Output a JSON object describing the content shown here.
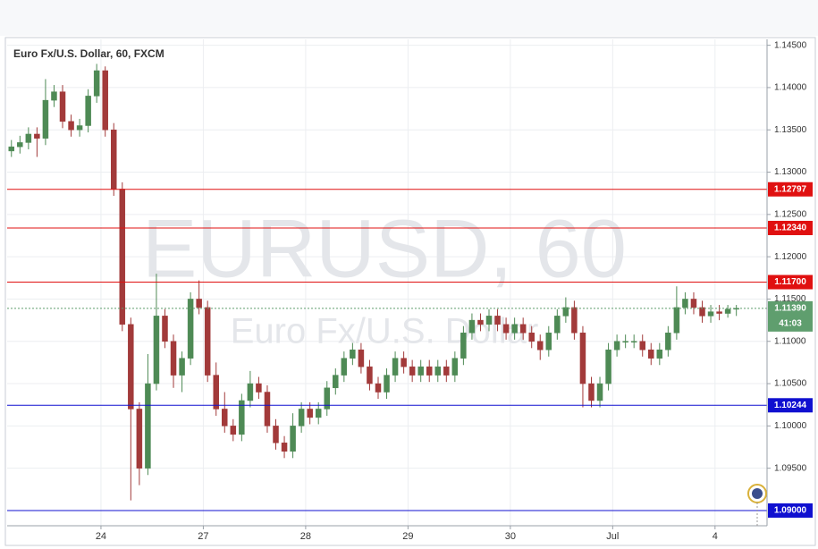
{
  "chart_data": {
    "type": "candlestick",
    "title": "Euro Fx/U.S. Dollar, 60, FXCM",
    "watermark": "EURUSD, 60",
    "watermark_subtitle": "Euro Fx/U.S. Dollar",
    "ylim": [
      1.0882,
      1.1457
    ],
    "yticks": [
      {
        "value": 1.095,
        "label": "1.09500"
      },
      {
        "value": 1.1,
        "label": "1.10000"
      },
      {
        "value": 1.105,
        "label": "1.10500"
      },
      {
        "value": 1.11,
        "label": "1.11000"
      },
      {
        "value": 1.115,
        "label": "1.11500"
      },
      {
        "value": 1.12,
        "label": "1.12000"
      },
      {
        "value": 1.125,
        "label": "1.12500"
      },
      {
        "value": 1.13,
        "label": "1.13000"
      },
      {
        "value": 1.135,
        "label": "1.13500"
      },
      {
        "value": 1.14,
        "label": "1.14000"
      },
      {
        "value": 1.145,
        "label": "1.14500"
      }
    ],
    "xticks": [
      {
        "value": 11,
        "label": "24"
      },
      {
        "value": 23,
        "label": "27"
      },
      {
        "value": 35,
        "label": "28"
      },
      {
        "value": 47,
        "label": "29"
      },
      {
        "value": 59,
        "label": "30"
      },
      {
        "value": 71,
        "label": "Jul"
      },
      {
        "value": 83,
        "label": "4"
      }
    ],
    "grid": true,
    "up_color": "#4e8a55",
    "down_color": "#a23a3a",
    "open": [
      1.1325,
      1.133,
      1.1335,
      1.1345,
      1.134,
      1.1385,
      1.1395,
      1.136,
      1.135,
      1.1355,
      1.139,
      1.142,
      1.135,
      1.128,
      1.112,
      1.102,
      1.095,
      1.105,
      1.113,
      1.11,
      1.106,
      1.108,
      1.115,
      1.114,
      1.106,
      1.102,
      1.1,
      1.099,
      1.103,
      1.105,
      1.104,
      1.1,
      1.098,
      1.097,
      1.1,
      1.102,
      1.101,
      1.102,
      1.1045,
      1.106,
      1.108,
      1.109,
      1.107,
      1.105,
      1.104,
      1.106,
      1.108,
      1.107,
      1.106,
      1.107,
      1.106,
      1.107,
      1.106,
      1.108,
      1.111,
      1.1125,
      1.112,
      1.113,
      1.112,
      1.111,
      1.112,
      1.111,
      1.11,
      1.109,
      1.111,
      1.113,
      1.114,
      1.111,
      1.105,
      1.103,
      1.105,
      1.109,
      1.11,
      1.11,
      1.11,
      1.109,
      1.108,
      1.109,
      1.111,
      1.114,
      1.115,
      1.114,
      1.113,
      1.1135,
      1.1133,
      1.1138
    ],
    "high": [
      1.1338,
      1.1343,
      1.1353,
      1.1353,
      1.141,
      1.1403,
      1.1403,
      1.1368,
      1.1363,
      1.1398,
      1.1428,
      1.1425,
      1.1358,
      1.1288,
      1.1128,
      1.1028,
      1.1085,
      1.118,
      1.1138,
      1.1108,
      1.1088,
      1.1158,
      1.1172,
      1.1148,
      1.1075,
      1.104,
      1.1008,
      1.1038,
      1.1065,
      1.1058,
      1.1048,
      1.1008,
      1.0988,
      1.1015,
      1.1028,
      1.1028,
      1.1028,
      1.1053,
      1.1068,
      1.1088,
      1.1098,
      1.1098,
      1.1078,
      1.1058,
      1.1068,
      1.1088,
      1.1088,
      1.1078,
      1.1078,
      1.1078,
      1.1078,
      1.1078,
      1.1088,
      1.1118,
      1.1133,
      1.1133,
      1.1138,
      1.1138,
      1.1128,
      1.1128,
      1.1128,
      1.1118,
      1.1108,
      1.1118,
      1.1138,
      1.1152,
      1.1148,
      1.1118,
      1.1058,
      1.1058,
      1.1098,
      1.1108,
      1.1108,
      1.1108,
      1.1108,
      1.1098,
      1.1098,
      1.1118,
      1.1165,
      1.1158,
      1.1158,
      1.1148,
      1.1143,
      1.1143,
      1.1143,
      1.1143
    ],
    "low": [
      1.1318,
      1.1322,
      1.1327,
      1.1318,
      1.1332,
      1.1377,
      1.1352,
      1.1342,
      1.1342,
      1.1347,
      1.1382,
      1.1342,
      1.1272,
      1.1112,
      1.0912,
      1.093,
      1.0942,
      1.1042,
      1.1092,
      1.1045,
      1.104,
      1.1072,
      1.1132,
      1.1052,
      1.1012,
      1.0992,
      1.0982,
      1.0982,
      1.1022,
      1.1032,
      1.0992,
      1.0972,
      1.0962,
      1.0962,
      1.0992,
      1.1002,
      1.1002,
      1.1012,
      1.1037,
      1.1052,
      1.1072,
      1.1062,
      1.1042,
      1.1032,
      1.1032,
      1.1052,
      1.1062,
      1.1052,
      1.1052,
      1.1052,
      1.1052,
      1.1052,
      1.1052,
      1.1072,
      1.1102,
      1.1112,
      1.1112,
      1.1112,
      1.1102,
      1.1102,
      1.1102,
      1.1092,
      1.1078,
      1.1082,
      1.1102,
      1.1122,
      1.1102,
      1.1022,
      1.1022,
      1.1022,
      1.1042,
      1.1082,
      1.1092,
      1.1092,
      1.1082,
      1.1072,
      1.1072,
      1.1082,
      1.1102,
      1.1132,
      1.1132,
      1.1122,
      1.1122,
      1.1125,
      1.1128,
      1.113
    ],
    "close": [
      1.133,
      1.1335,
      1.1345,
      1.134,
      1.1385,
      1.1395,
      1.136,
      1.135,
      1.1355,
      1.139,
      1.142,
      1.135,
      1.128,
      1.112,
      1.102,
      1.095,
      1.105,
      1.113,
      1.11,
      1.106,
      1.108,
      1.115,
      1.114,
      1.106,
      1.102,
      1.1,
      1.099,
      1.103,
      1.105,
      1.104,
      1.1,
      1.098,
      1.097,
      1.1,
      1.102,
      1.101,
      1.102,
      1.1045,
      1.106,
      1.108,
      1.109,
      1.107,
      1.105,
      1.104,
      1.106,
      1.108,
      1.107,
      1.106,
      1.107,
      1.106,
      1.107,
      1.106,
      1.108,
      1.111,
      1.1125,
      1.112,
      1.113,
      1.112,
      1.111,
      1.112,
      1.111,
      1.11,
      1.109,
      1.111,
      1.113,
      1.114,
      1.111,
      1.105,
      1.103,
      1.105,
      1.109,
      1.11,
      1.11,
      1.11,
      1.109,
      1.108,
      1.109,
      1.111,
      1.114,
      1.115,
      1.114,
      1.113,
      1.1135,
      1.1133,
      1.1138,
      1.1139
    ],
    "levels": [
      {
        "value": 1.12797,
        "label": "1.12797",
        "color": "#e01010"
      },
      {
        "value": 1.1234,
        "label": "1.12340",
        "color": "#e01010"
      },
      {
        "value": 1.117,
        "label": "1.11700",
        "color": "#e01010"
      },
      {
        "value": 1.10244,
        "label": "1.10244",
        "color": "#1010d0"
      },
      {
        "value": 1.09,
        "label": "1.09000",
        "color": "#1010d0"
      }
    ],
    "last_price": {
      "value": 1.1139,
      "label": "1.11390",
      "color": "#5f9e6e"
    },
    "countdown": "41:03"
  }
}
